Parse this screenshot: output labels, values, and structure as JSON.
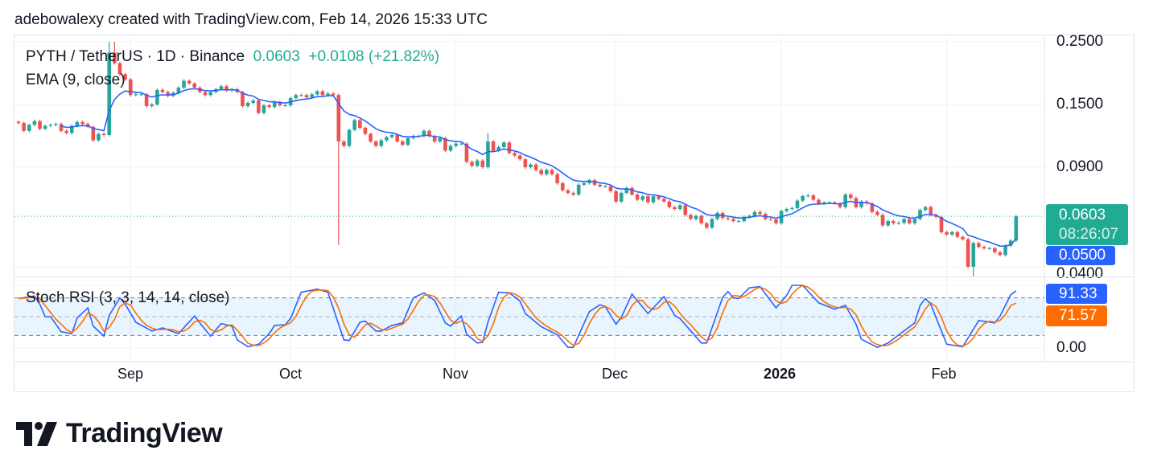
{
  "credit": "adebowalexy created with TradingView.com, Feb 14, 2026 15:33 UTC",
  "legend": {
    "symbol": "PYTH / TetherUS · 1D · Binance",
    "last": "0.0603",
    "change": "+0.0108 (+21.82%)",
    "ema": "EMA (9, close)",
    "stoch": "Stoch RSI (3, 3, 14, 14, close)"
  },
  "price_axis": {
    "ticks": [
      "0.2500",
      "0.1500",
      "0.0900",
      "0.0400"
    ],
    "last_price": "0.0603",
    "countdown": "08:26:07",
    "ema_value": "0.0500"
  },
  "stoch_axis": {
    "k_value": "91.33",
    "d_value": "71.57",
    "tick": "0.00"
  },
  "time_axis": [
    "Sep",
    "Oct",
    "Nov",
    "Dec",
    "2026",
    "Feb"
  ],
  "brand": "TradingView",
  "colors": {
    "up": "#26a69a",
    "down": "#ef5350",
    "ema": "#2962ff",
    "k": "#2962ff",
    "d": "#ff6d00",
    "last": "#22ab94"
  },
  "chart_data": [
    {
      "type": "candlestick",
      "scale": "log",
      "ylim": [
        0.036,
        0.26
      ],
      "yticks": [
        0.25,
        0.15,
        0.09,
        0.04
      ],
      "xticks": [
        {
          "label": "Sep",
          "date": "2025-09-01"
        },
        {
          "label": "Oct",
          "date": "2025-10-01"
        },
        {
          "label": "Nov",
          "date": "2025-11-01"
        },
        {
          "label": "Dec",
          "date": "2025-12-01"
        },
        {
          "label": "2026",
          "date": "2026-01-01"
        },
        {
          "label": "Feb",
          "date": "2026-02-01"
        }
      ],
      "first_bar_date": "2025-08-11",
      "closes": [
        0.129,
        0.121,
        0.127,
        0.131,
        0.123,
        0.126,
        0.127,
        0.128,
        0.121,
        0.119,
        0.126,
        0.13,
        0.128,
        0.125,
        0.112,
        0.118,
        0.117,
        0.229,
        0.21,
        0.192,
        0.184,
        0.162,
        0.163,
        0.163,
        0.148,
        0.15,
        0.169,
        0.166,
        0.161,
        0.165,
        0.172,
        0.182,
        0.178,
        0.172,
        0.166,
        0.162,
        0.166,
        0.17,
        0.174,
        0.168,
        0.17,
        0.166,
        0.148,
        0.152,
        0.155,
        0.14,
        0.149,
        0.147,
        0.153,
        0.149,
        0.149,
        0.158,
        0.162,
        0.162,
        0.159,
        0.163,
        0.167,
        0.162,
        0.164,
        0.162,
        0.111,
        0.107,
        0.122,
        0.132,
        0.124,
        0.118,
        0.111,
        0.107,
        0.112,
        0.115,
        0.117,
        0.111,
        0.108,
        0.114,
        0.116,
        0.116,
        0.121,
        0.116,
        0.111,
        0.114,
        0.103,
        0.107,
        0.109,
        0.109,
        0.094,
        0.091,
        0.095,
        0.09,
        0.111,
        0.103,
        0.106,
        0.11,
        0.101,
        0.099,
        0.096,
        0.09,
        0.092,
        0.088,
        0.085,
        0.088,
        0.085,
        0.079,
        0.0745,
        0.073,
        0.072,
        0.078,
        0.079,
        0.081,
        0.078,
        0.077,
        0.077,
        0.074,
        0.068,
        0.073,
        0.076,
        0.072,
        0.069,
        0.071,
        0.0676,
        0.071,
        0.0695,
        0.068,
        0.065,
        0.064,
        0.066,
        0.061,
        0.059,
        0.0605,
        0.057,
        0.055,
        0.059,
        0.062,
        0.0595,
        0.059,
        0.058,
        0.058,
        0.06,
        0.0605,
        0.0625,
        0.0615,
        0.059,
        0.0588,
        0.057,
        0.063,
        0.064,
        0.0645,
        0.0685,
        0.0711,
        0.0715,
        0.069,
        0.067,
        0.0675,
        0.0675,
        0.067,
        0.065,
        0.072,
        0.07,
        0.065,
        0.068,
        0.067,
        0.0625,
        0.061,
        0.056,
        0.058,
        0.057,
        0.0572,
        0.059,
        0.057,
        0.059,
        0.0635,
        0.065,
        0.061,
        0.06,
        0.053,
        0.052,
        0.053,
        0.051,
        0.05,
        0.04,
        0.0485,
        0.047,
        0.0465,
        0.0465,
        0.045,
        0.044,
        0.0475,
        0.0495,
        0.0603
      ],
      "notable_wicks": [
        {
          "date": "2025-08-28",
          "high": 0.25
        },
        {
          "date": "2025-08-29",
          "high": 0.25
        },
        {
          "date": "2025-10-10",
          "low": 0.0478
        },
        {
          "date": "2025-11-07",
          "high": 0.119
        },
        {
          "date": "2026-02-06",
          "low": 0.037
        }
      ],
      "indicator": "EMA (9, close)",
      "last": 0.0603,
      "ema_last": 0.05
    },
    {
      "type": "line",
      "name": "Stoch RSI (3, 3, 14, 14, close)",
      "ylim": [
        0,
        100
      ],
      "bands": [
        80,
        50,
        20
      ],
      "k_last": 91.33,
      "d_last": 71.57,
      "k": [
        [
          "2025-08-11",
          79
        ],
        [
          "2025-08-14",
          83
        ],
        [
          "2025-08-15",
          70
        ],
        [
          "2025-08-16",
          50
        ],
        [
          "2025-08-17",
          50
        ],
        [
          "2025-08-19",
          26
        ],
        [
          "2025-08-21",
          23
        ],
        [
          "2025-08-22",
          48
        ],
        [
          "2025-08-24",
          64
        ],
        [
          "2025-08-25",
          35
        ],
        [
          "2025-08-27",
          19
        ],
        [
          "2025-08-28",
          52
        ],
        [
          "2025-08-30",
          80
        ],
        [
          "2025-08-31",
          70
        ],
        [
          "2025-09-02",
          41
        ],
        [
          "2025-09-05",
          27
        ],
        [
          "2025-09-07",
          32
        ],
        [
          "2025-09-10",
          23
        ],
        [
          "2025-09-13",
          51
        ],
        [
          "2025-09-14",
          40
        ],
        [
          "2025-09-16",
          19
        ],
        [
          "2025-09-18",
          39
        ],
        [
          "2025-09-20",
          35
        ],
        [
          "2025-09-21",
          13
        ],
        [
          "2025-09-23",
          2
        ],
        [
          "2025-09-25",
          6
        ],
        [
          "2025-09-27",
          23
        ],
        [
          "2025-09-28",
          36
        ],
        [
          "2025-09-30",
          37
        ],
        [
          "2025-10-01",
          47
        ],
        [
          "2025-10-03",
          89
        ],
        [
          "2025-10-06",
          94
        ],
        [
          "2025-10-08",
          89
        ],
        [
          "2025-10-11",
          13
        ],
        [
          "2025-10-12",
          12
        ],
        [
          "2025-10-14",
          41
        ],
        [
          "2025-10-15",
          43
        ],
        [
          "2025-10-17",
          27
        ],
        [
          "2025-10-18",
          27
        ],
        [
          "2025-10-20",
          36
        ],
        [
          "2025-10-22",
          40
        ],
        [
          "2025-10-24",
          80
        ],
        [
          "2025-10-26",
          88
        ],
        [
          "2025-10-28",
          76
        ],
        [
          "2025-10-30",
          40
        ],
        [
          "2025-10-31",
          35
        ],
        [
          "2025-11-02",
          51
        ],
        [
          "2025-11-03",
          22
        ],
        [
          "2025-11-05",
          8
        ],
        [
          "2025-11-06",
          9
        ],
        [
          "2025-11-07",
          41
        ],
        [
          "2025-11-09",
          89
        ],
        [
          "2025-11-11",
          88
        ],
        [
          "2025-11-13",
          75
        ],
        [
          "2025-11-14",
          55
        ],
        [
          "2025-11-17",
          34
        ],
        [
          "2025-11-20",
          21
        ],
        [
          "2025-11-22",
          1
        ],
        [
          "2025-11-23",
          1
        ],
        [
          "2025-11-26",
          58
        ],
        [
          "2025-11-28",
          69
        ],
        [
          "2025-11-29",
          66
        ],
        [
          "2025-12-01",
          38
        ],
        [
          "2025-12-02",
          49
        ],
        [
          "2025-12-04",
          86
        ],
        [
          "2025-12-07",
          55
        ],
        [
          "2025-12-10",
          82
        ],
        [
          "2025-12-12",
          52
        ],
        [
          "2025-12-13",
          47
        ],
        [
          "2025-12-17",
          8
        ],
        [
          "2025-12-18",
          8
        ],
        [
          "2025-12-21",
          81
        ],
        [
          "2025-12-22",
          90
        ],
        [
          "2025-12-23",
          80
        ],
        [
          "2025-12-24",
          79
        ],
        [
          "2025-12-26",
          96
        ],
        [
          "2025-12-28",
          98
        ],
        [
          "2025-12-31",
          64
        ],
        [
          "2026-01-02",
          84
        ],
        [
          "2026-01-03",
          100
        ],
        [
          "2026-01-05",
          100
        ],
        [
          "2026-01-08",
          72
        ],
        [
          "2026-01-11",
          62
        ],
        [
          "2026-01-13",
          68
        ],
        [
          "2026-01-15",
          38
        ],
        [
          "2026-01-16",
          14
        ],
        [
          "2026-01-19",
          1
        ],
        [
          "2026-01-21",
          8
        ],
        [
          "2026-01-23",
          21
        ],
        [
          "2026-01-26",
          40
        ],
        [
          "2026-01-27",
          68
        ],
        [
          "2026-01-28",
          79
        ],
        [
          "2026-01-29",
          70
        ],
        [
          "2026-02-01",
          6
        ],
        [
          "2026-02-04",
          2
        ],
        [
          "2026-02-07",
          44
        ],
        [
          "2026-02-10",
          40
        ],
        [
          "2026-02-11",
          51
        ],
        [
          "2026-02-13",
          85
        ],
        [
          "2026-02-14",
          91.33
        ]
      ]
    }
  ]
}
